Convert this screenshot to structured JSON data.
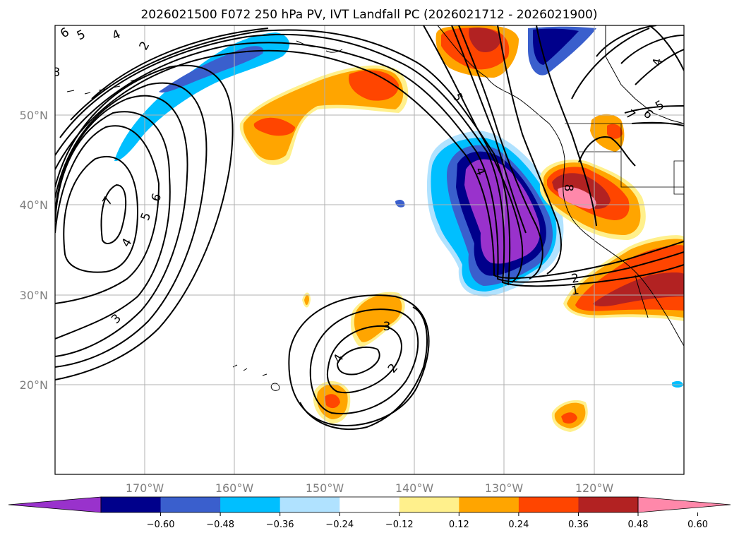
{
  "figure": {
    "title": "2026021500 F072 250 hPa PV, IVT Landfall PC (2026021712 - 2026021900)"
  },
  "map": {
    "lon_ticks": [
      "170°W",
      "160°W",
      "150°W",
      "140°W",
      "130°W",
      "120°W"
    ],
    "lat_ticks": [
      "50°N",
      "40°N",
      "30°N",
      "20°N"
    ],
    "grid": true
  },
  "colorbar": {
    "ticks": [
      "−0.60",
      "−0.48",
      "−0.36",
      "−0.24",
      "−0.12",
      "0.12",
      "0.24",
      "0.36",
      "0.48",
      "0.60"
    ],
    "colors": [
      "#9932cc",
      "#00008b",
      "#3a5fcd",
      "#00bfff",
      "#b0e2ff",
      "#ffffff",
      "#fff08c",
      "#ffa500",
      "#ff4500",
      "#b22222",
      "#ff88aa"
    ],
    "extend": "both"
  },
  "contours": {
    "labels": [
      "6",
      "5",
      "4",
      "2",
      "3",
      "7",
      "6",
      "5",
      "4",
      "3",
      "5",
      "4",
      "8",
      "2",
      "1",
      "3",
      "4",
      "2",
      "7",
      "6",
      "5",
      "4"
    ]
  }
}
